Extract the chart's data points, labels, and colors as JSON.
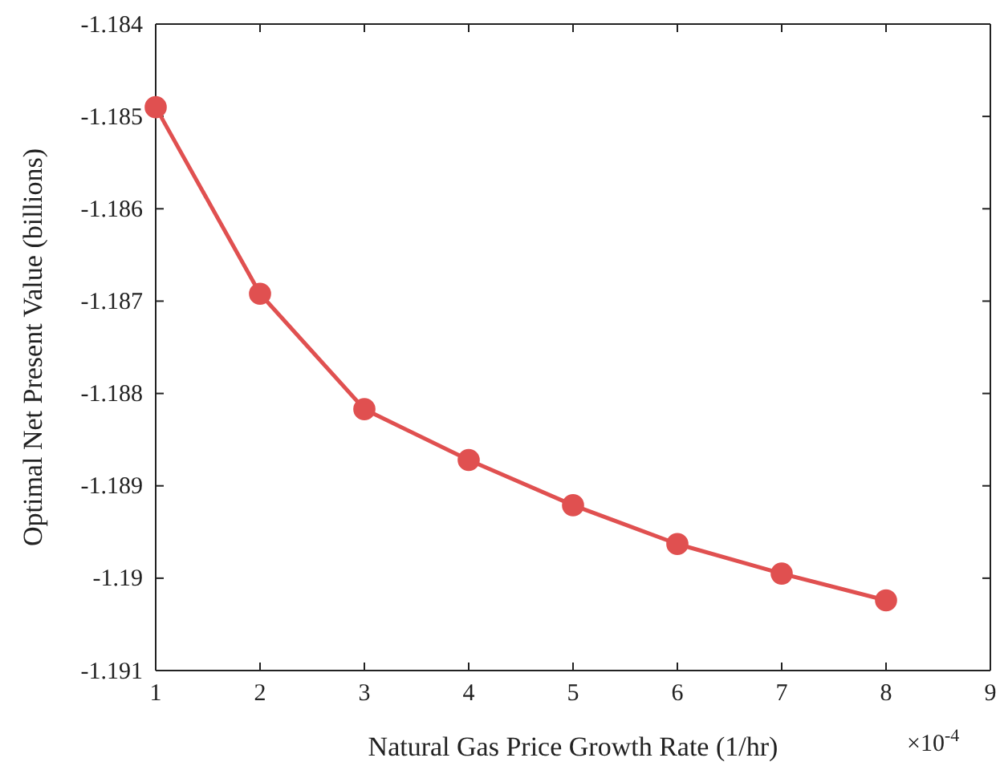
{
  "chart_data": {
    "type": "line",
    "xlabel": "Natural Gas Price Growth Rate (1/hr)",
    "ylabel": "Optimal Net Present Value (billions)",
    "x": [
      1,
      2,
      3,
      4,
      5,
      6,
      7,
      8
    ],
    "series": [
      {
        "color": "#e05050",
        "values": [
          -1.1849,
          -1.18692,
          -1.18817,
          -1.18872,
          -1.18921,
          -1.18963,
          -1.18995,
          -1.19024
        ]
      }
    ],
    "xlim": [
      1,
      9
    ],
    "xticks": [
      1,
      2,
      3,
      4,
      5,
      6,
      7,
      8,
      9
    ],
    "ylim": [
      -1.191,
      -1.184
    ],
    "yticks": [
      -1.191,
      -1.19,
      -1.189,
      -1.188,
      -1.187,
      -1.186,
      -1.185,
      -1.184
    ],
    "annotations": [
      "×10$^{-4}$"
    ],
    "marker": "circle",
    "line_style": "solid"
  }
}
